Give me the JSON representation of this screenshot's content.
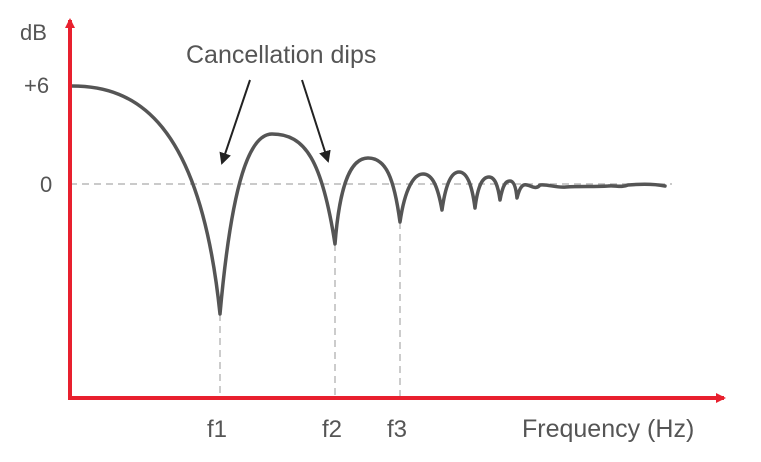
{
  "labels": {
    "y_axis": "dB",
    "y_tick_top": "+6",
    "y_tick_zero": "0",
    "annotation": "Cancellation dips",
    "dip1": "f1",
    "dip2": "f2",
    "dip3": "f3",
    "x_axis": "Frequency (Hz)"
  },
  "colors": {
    "axis": "#e8202e",
    "curve": "#555555",
    "guide": "#aaaaaa",
    "text": "#555555",
    "arrow": "#222222"
  }
}
